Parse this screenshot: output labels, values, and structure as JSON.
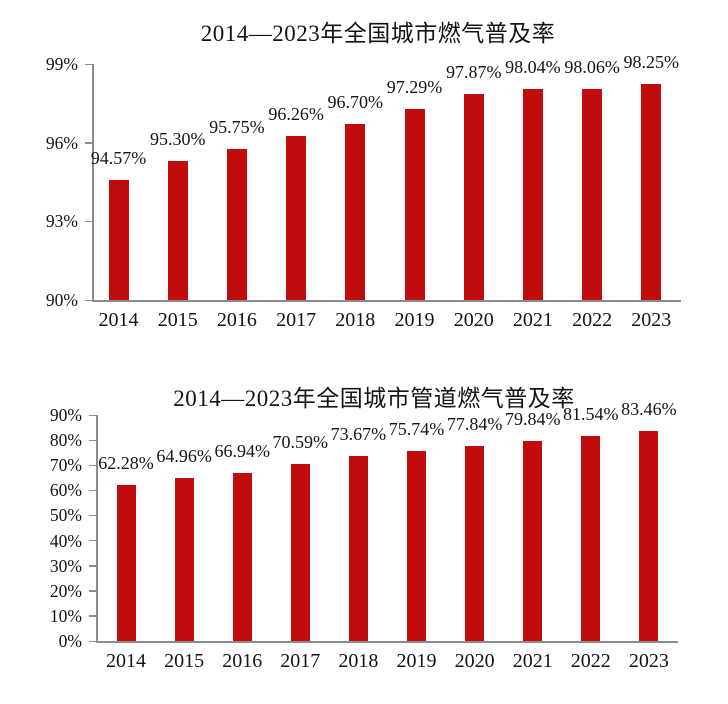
{
  "page": {
    "background_color": "#ffffff",
    "text_color": "#141414",
    "axis_color": "#8c8c8c"
  },
  "chart_data": [
    {
      "type": "bar",
      "title": "2014—2023年全国城市燃气普及率",
      "categories": [
        "2014",
        "2015",
        "2016",
        "2017",
        "2018",
        "2019",
        "2020",
        "2021",
        "2022",
        "2023"
      ],
      "values": [
        94.57,
        95.3,
        95.75,
        96.26,
        96.7,
        97.29,
        97.87,
        98.04,
        98.06,
        98.25
      ],
      "data_labels": [
        "94.57%",
        "95.30%",
        "95.75%",
        "96.26%",
        "96.70%",
        "97.29%",
        "97.87%",
        "98.04%",
        "98.06%",
        "98.25%"
      ],
      "xlabel": "",
      "ylabel": "",
      "ylim": [
        90,
        99
      ],
      "y_ticks": [
        {
          "value": 90,
          "label": "90%"
        },
        {
          "value": 93,
          "label": "93%"
        },
        {
          "value": 96,
          "label": "96%"
        },
        {
          "value": 99,
          "label": "99%"
        }
      ],
      "bar_color": "#c00c0c",
      "grid": false,
      "legend": "none",
      "data_labels_position": "above-bars"
    },
    {
      "type": "bar",
      "title": "2014—2023年全国城市管道燃气普及率",
      "categories": [
        "2014",
        "2015",
        "2016",
        "2017",
        "2018",
        "2019",
        "2020",
        "2021",
        "2022",
        "2023"
      ],
      "values": [
        62.28,
        64.96,
        66.94,
        70.59,
        73.67,
        75.74,
        77.84,
        79.84,
        81.54,
        83.46
      ],
      "data_labels": [
        "62.28%",
        "64.96%",
        "66.94%",
        "70.59%",
        "73.67%",
        "75.74%",
        "77.84%",
        "79.84%",
        "81.54%",
        "83.46%"
      ],
      "xlabel": "",
      "ylabel": "",
      "ylim": [
        0,
        90
      ],
      "y_ticks": [
        {
          "value": 0,
          "label": "0%"
        },
        {
          "value": 10,
          "label": "10%"
        },
        {
          "value": 20,
          "label": "20%"
        },
        {
          "value": 30,
          "label": "30%"
        },
        {
          "value": 40,
          "label": "40%"
        },
        {
          "value": 50,
          "label": "50%"
        },
        {
          "value": 60,
          "label": "60%"
        },
        {
          "value": 70,
          "label": "70%"
        },
        {
          "value": 80,
          "label": "80%"
        },
        {
          "value": 90,
          "label": "90%"
        }
      ],
      "bar_color": "#c00c0c",
      "grid": false,
      "legend": "none",
      "data_labels_position": "above-bars"
    }
  ]
}
